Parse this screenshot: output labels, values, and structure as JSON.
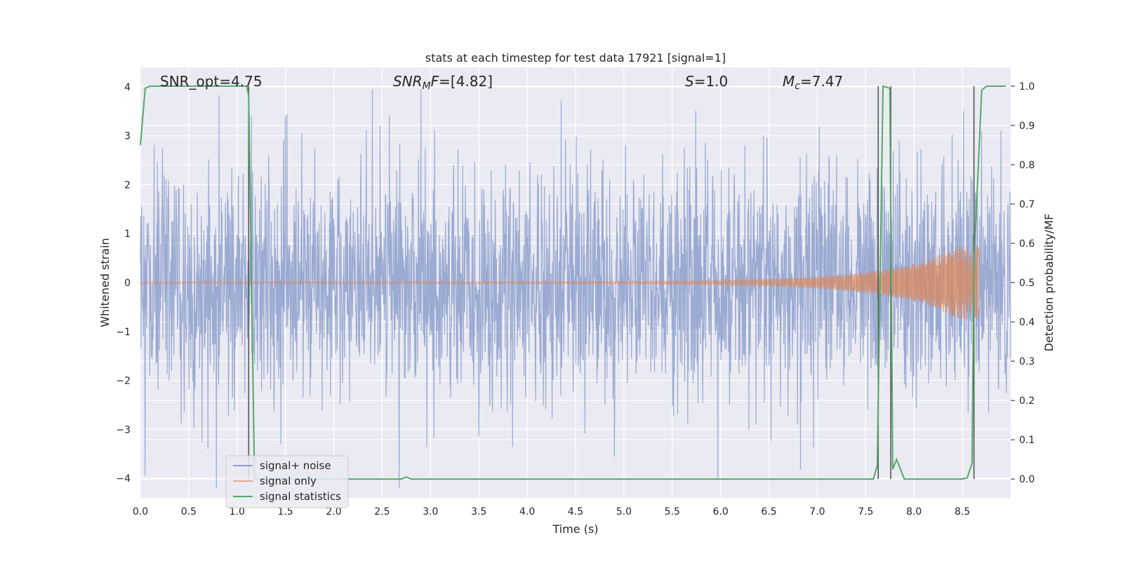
{
  "chart_data": {
    "type": "line",
    "title": "stats at each timestep for test data 17921 [signal=1]",
    "xlabel": "Time (s)",
    "ylabel": "Whitened strain",
    "ylabel_right": "Detection probability/MF",
    "xlim": [
      0.0,
      9.0
    ],
    "ylim": [
      -4.4,
      4.4
    ],
    "ylim_right": [
      -0.048,
      1.048
    ],
    "x_ticks": [
      "0.0",
      "0.5",
      "1.0",
      "1.5",
      "2.0",
      "2.5",
      "3.0",
      "3.5",
      "4.0",
      "4.5",
      "5.0",
      "5.5",
      "6.0",
      "6.5",
      "7.0",
      "7.5",
      "8.0",
      "8.5"
    ],
    "x_tick_values": [
      0.0,
      0.5,
      1.0,
      1.5,
      2.0,
      2.5,
      3.0,
      3.5,
      4.0,
      4.5,
      5.0,
      5.5,
      6.0,
      6.5,
      7.0,
      7.5,
      8.0,
      8.5
    ],
    "y_ticks": [
      "−4",
      "−3",
      "−2",
      "−1",
      "0",
      "1",
      "2",
      "3",
      "4"
    ],
    "y_tick_values": [
      -4,
      -3,
      -2,
      -1,
      0,
      1,
      2,
      3,
      4
    ],
    "y_right_ticks": [
      "0.0",
      "0.1",
      "0.2",
      "0.3",
      "0.4",
      "0.5",
      "0.6",
      "0.7",
      "0.8",
      "0.9",
      "1.0"
    ],
    "y_right_tick_values": [
      0.0,
      0.1,
      0.2,
      0.3,
      0.4,
      0.5,
      0.6,
      0.7,
      0.8,
      0.9,
      1.0
    ],
    "grid": true,
    "legend_position": "lower-left",
    "annotations": [
      {
        "prefix": "SNR_opt=4.75",
        "x": 0.2
      },
      {
        "italic": "SNR",
        "sub": "M",
        "italic2": "F",
        "suffix": "=[4.82]",
        "x": 2.6
      },
      {
        "italic": "S",
        "suffix": "=1.0",
        "x": 5.6
      },
      {
        "italic": "M",
        "sub": "c",
        "suffix": "=7.47",
        "x": 6.6
      }
    ],
    "series": [
      {
        "name": "signal+ noise",
        "color": "#8c9fcc",
        "axis": "left",
        "style": "noise",
        "x_range": [
          0.0,
          9.0
        ],
        "amplitude_std": 1.0,
        "peaks": [
          {
            "x": 0.05,
            "y": -3.95
          },
          {
            "x": 2.4,
            "y": 3.95
          },
          {
            "x": 2.9,
            "y": 3.95
          },
          {
            "x": 4.9,
            "y": -3.55
          },
          {
            "x": 5.97,
            "y": -4.0
          },
          {
            "x": 0.7,
            "y": -3.4
          },
          {
            "x": 3.5,
            "y": -3.15
          },
          {
            "x": 1.5,
            "y": 3.4
          },
          {
            "x": 8.7,
            "y": 3.1
          },
          {
            "x": 8.9,
            "y": 3.1
          }
        ]
      },
      {
        "name": "signal only",
        "color": "#dd8452",
        "axis": "left",
        "style": "chirp",
        "x_range": [
          0.0,
          8.68
        ],
        "amplitude_start": 0.02,
        "amplitude_end": 0.75,
        "merger_time": 8.68
      },
      {
        "name": "signal statistics",
        "color": "#55a868",
        "axis": "right",
        "style": "line",
        "x": [
          0.0,
          0.05,
          0.1,
          1.0,
          1.1,
          1.12,
          1.18,
          1.25,
          2.5,
          2.7,
          2.75,
          2.8,
          3.0,
          7.5,
          7.58,
          7.62,
          7.68,
          7.75,
          7.78,
          7.82,
          7.9,
          8.0,
          8.5,
          8.55,
          8.6,
          8.62,
          8.7,
          8.75,
          8.95
        ],
        "y": [
          0.85,
          0.995,
          1.0,
          1.0,
          1.0,
          0.975,
          0.0,
          0.0,
          0.0,
          0.0,
          0.005,
          0.0,
          0.0,
          0.0,
          0.0,
          0.035,
          1.0,
          0.995,
          0.025,
          0.05,
          0.0,
          0.0,
          0.0,
          0.003,
          0.04,
          0.55,
          0.99,
          1.0,
          1.0
        ]
      }
    ],
    "vertical_lines": [
      1.12,
      7.63,
      7.76,
      8.62
    ]
  }
}
